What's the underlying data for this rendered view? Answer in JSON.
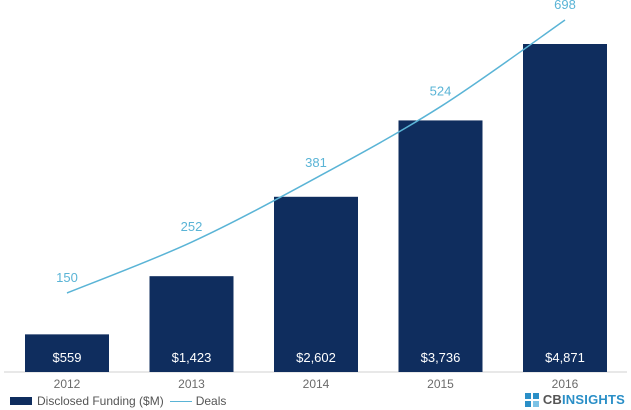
{
  "chart_data": {
    "type": "bar",
    "categories": [
      "2012",
      "2013",
      "2014",
      "2015",
      "2016"
    ],
    "series": [
      {
        "name": "Disclosed Funding ($M)",
        "kind": "bar",
        "values": [
          559,
          1423,
          2602,
          3736,
          4871
        ],
        "labels": [
          "$559",
          "$1,423",
          "$2,602",
          "$3,736",
          "$4,871"
        ]
      },
      {
        "name": "Deals",
        "kind": "line",
        "values": [
          150,
          252,
          381,
          524,
          698
        ],
        "labels": [
          "150",
          "252",
          "381",
          "524",
          "698"
        ]
      }
    ],
    "title": "",
    "xlabel": "",
    "ylabel": "",
    "grid": false,
    "legend_position": "bottom-left"
  },
  "colors": {
    "bar": "#0f2d5e",
    "line": "#5ab4d6",
    "brand_mark": "#2a8fc7"
  },
  "legend": {
    "funding_label": "Disclosed Funding ($M)",
    "deals_label": "Deals"
  },
  "brand": {
    "cb": "CB",
    "insights": "INSIGHTS",
    "icon": "cb-insights-logo-icon"
  }
}
